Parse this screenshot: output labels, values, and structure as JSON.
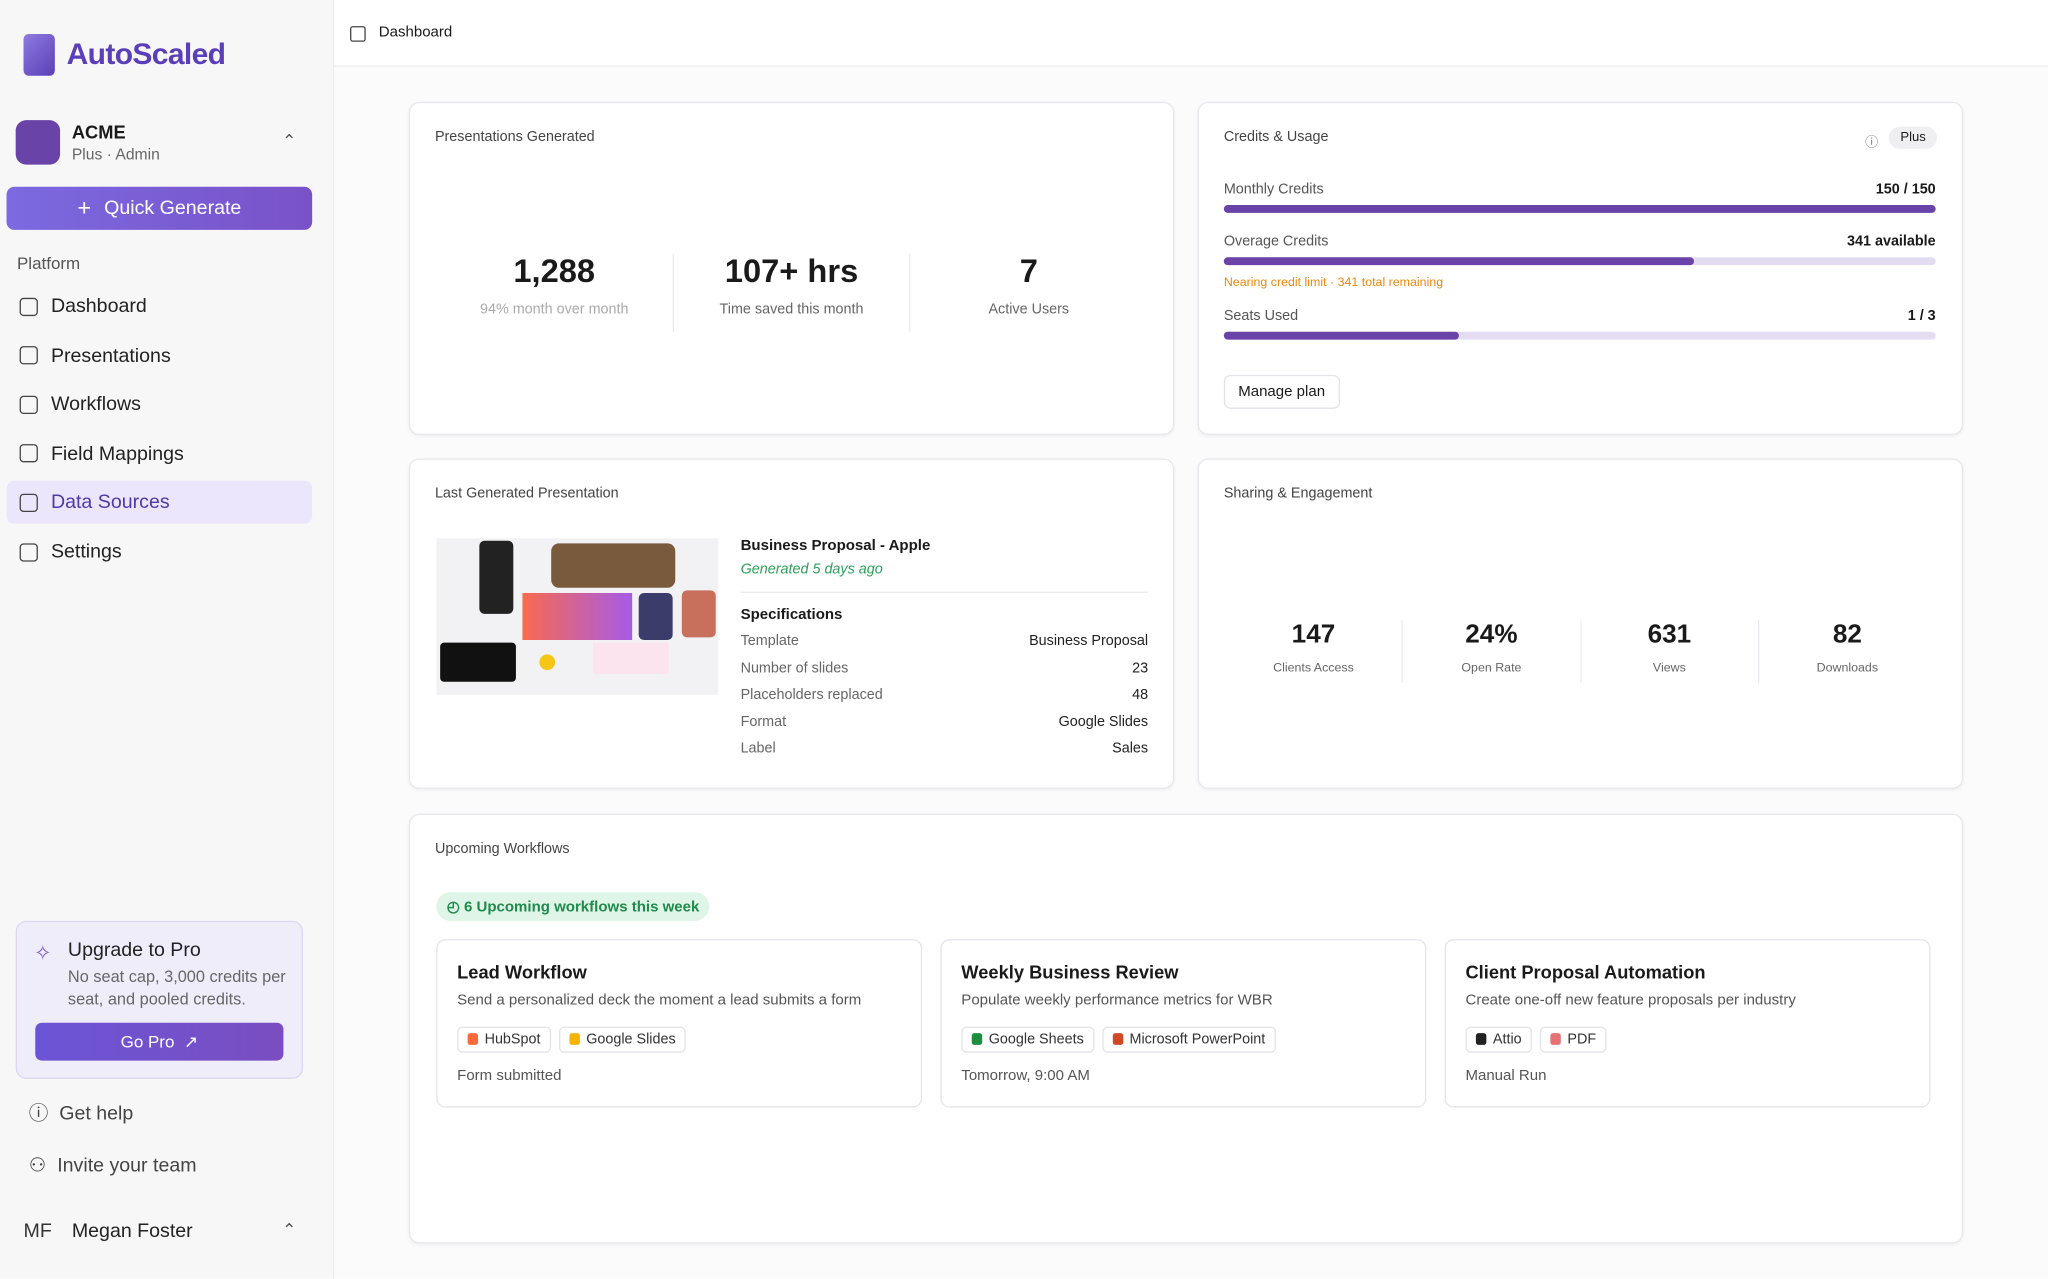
{
  "sidebar": {
    "brand": "AutoScaled",
    "org": {
      "name": "ACME",
      "plan": "Plus · Admin"
    },
    "quick_generate": "Quick Generate",
    "section": "Platform",
    "nav": [
      "Dashboard",
      "Presentations",
      "Workflows",
      "Field Mappings",
      "Data Sources",
      "Settings"
    ],
    "upgrade": {
      "title": "Upgrade to Pro",
      "text": "No seat cap, 3,000 credits per seat, and pooled credits.",
      "button": "Go Pro"
    },
    "help": "Get help",
    "invite": "Invite your team",
    "user": {
      "initials": "MF",
      "name": "Megan Foster"
    }
  },
  "header": {
    "breadcrumb": "Dashboard"
  },
  "presentations": {
    "title": "Presentations Generated",
    "stats": [
      {
        "value": "1,288",
        "label": "94% month over month"
      },
      {
        "value": "107+ hrs",
        "label": "Time saved this month"
      },
      {
        "value": "7",
        "label": "Active Users"
      }
    ]
  },
  "credits": {
    "title": "Credits & Usage",
    "badge": "Plus",
    "rows": [
      {
        "label": "Monthly Credits",
        "value": "150 / 150"
      },
      {
        "label": "Overage Credits",
        "value": "341 available"
      },
      {
        "label": "Seats Used",
        "value": "1 / 3"
      }
    ],
    "warning": "Nearing credit limit · 341 total remaining",
    "button": "Manage plan"
  },
  "last": {
    "title": "Last Generated Presentation",
    "name": "Business Proposal - Apple",
    "generated": "Generated 5 days ago",
    "specs_title": "Specifications",
    "specs": [
      [
        "Template",
        "Business Proposal"
      ],
      [
        "Number of slides",
        "23"
      ],
      [
        "Placeholders replaced",
        "48"
      ],
      [
        "Format",
        "Google Slides"
      ],
      [
        "Label",
        "Sales"
      ]
    ]
  },
  "sharing": {
    "title": "Sharing & Engagement",
    "stats": [
      {
        "value": "147",
        "label": "Clients Access"
      },
      {
        "value": "24%",
        "label": "Open Rate"
      },
      {
        "value": "631",
        "label": "Views"
      },
      {
        "value": "82",
        "label": "Downloads"
      }
    ]
  },
  "workflows": {
    "title": "Upcoming Workflows",
    "badge": "6 Upcoming workflows this week",
    "items": [
      {
        "name": "Lead Workflow",
        "desc": "Send a personalized deck the moment a lead submits a form",
        "tags": [
          "HubSpot",
          "Google Slides"
        ],
        "trigger": "Form submitted"
      },
      {
        "name": "Weekly Business Review",
        "desc": "Populate weekly performance metrics for WBR",
        "tags": [
          "Google Sheets",
          "Microsoft PowerPoint"
        ],
        "trigger": "Tomorrow, 9:00 AM"
      },
      {
        "name": "Client Proposal Automation",
        "desc": "Create one-off new feature proposals per industry",
        "tags": [
          "Attio",
          "PDF"
        ],
        "trigger": "Manual Run"
      }
    ]
  }
}
